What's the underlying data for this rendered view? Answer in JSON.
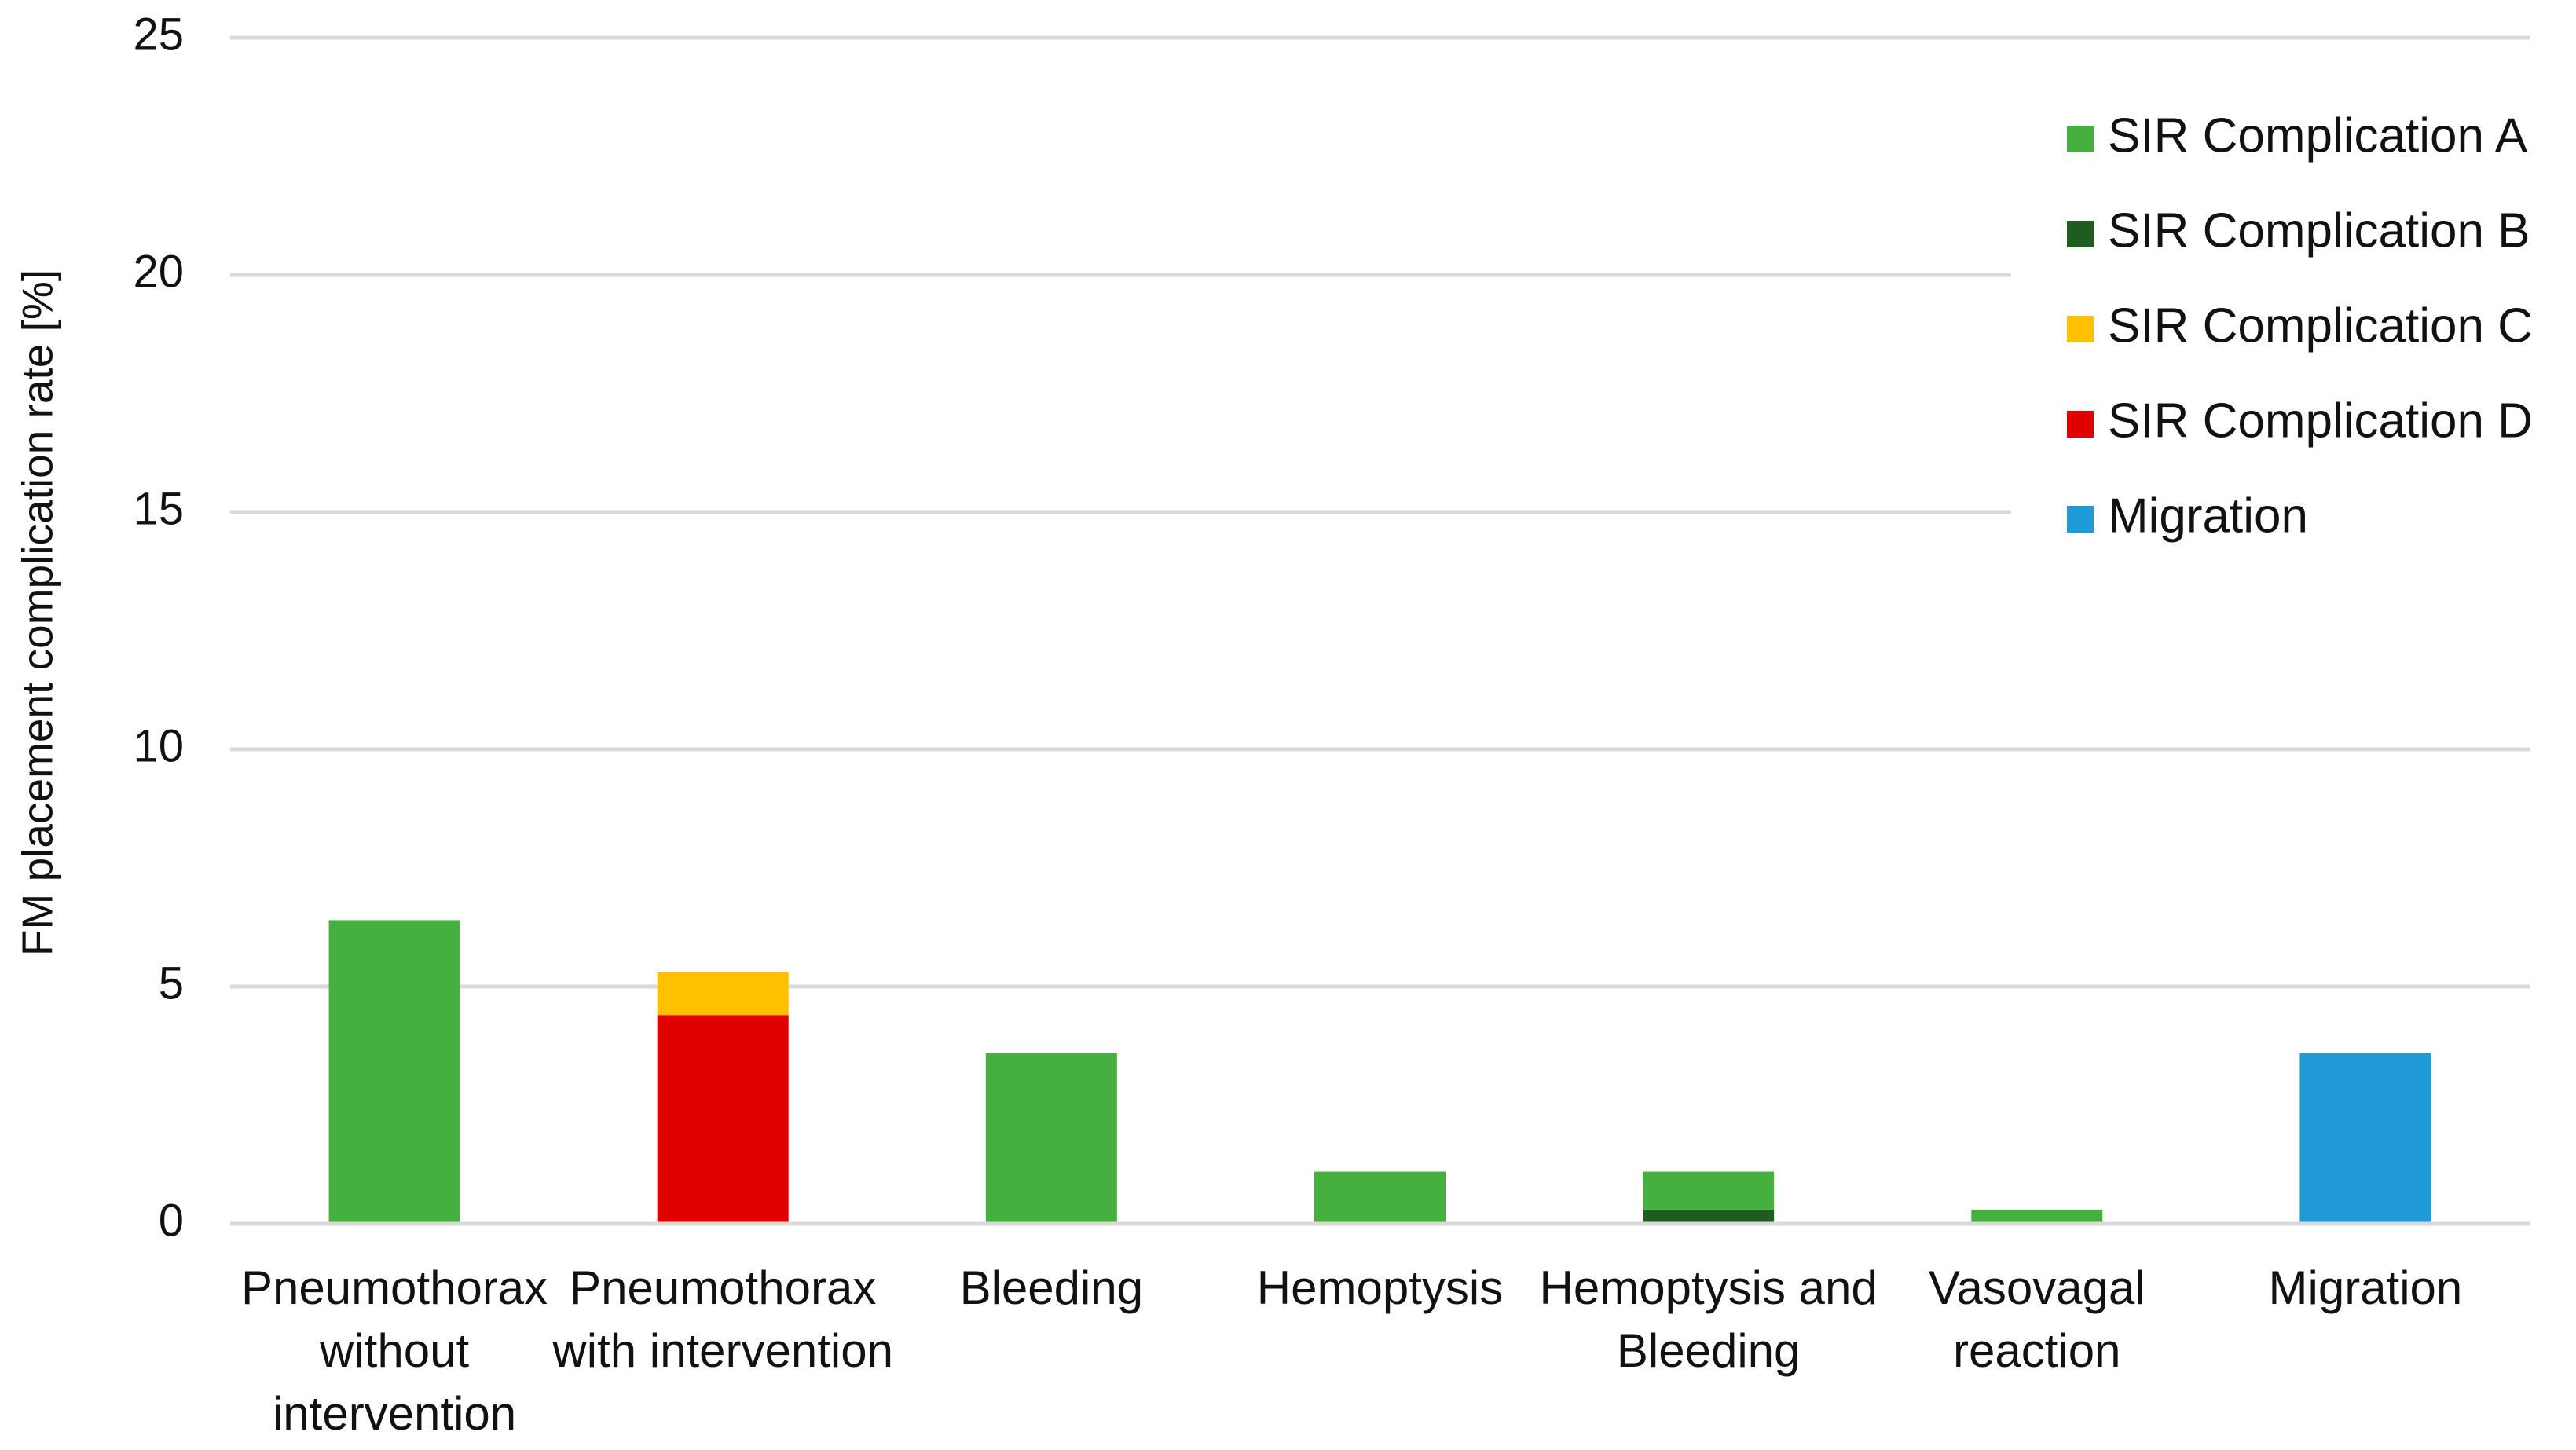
{
  "chart_data": {
    "type": "stacked_bar",
    "ylabel": "FM placement complication rate [%]",
    "categories": [
      "Pneumothorax without intervention",
      "Pneumothorax with intervention",
      "Bleeding",
      "Hemoptysis",
      "Hemoptysis and Bleeding",
      "Vasovagal reaction",
      "Migration"
    ],
    "series": [
      {
        "name": "SIR Complication A",
        "color": "#45b03f",
        "values": [
          6.4,
          null,
          3.6,
          1.1,
          0.8,
          0.3,
          null
        ]
      },
      {
        "name": "SIR Complication B",
        "color": "#1e5c20",
        "values": [
          null,
          null,
          null,
          null,
          0.3,
          null,
          null
        ]
      },
      {
        "name": "SIR Complication C",
        "color": "#ffc000",
        "values": [
          null,
          0.9,
          null,
          null,
          null,
          null,
          null
        ]
      },
      {
        "name": "SIR Complication D",
        "color": "#e00000",
        "values": [
          null,
          4.4,
          null,
          null,
          null,
          null,
          null
        ]
      },
      {
        "name": "Migration",
        "color": "#1f9ad6",
        "values": [
          null,
          null,
          null,
          null,
          null,
          null,
          3.6
        ]
      }
    ],
    "ylim": [
      0,
      25
    ],
    "yticks": [
      0,
      5,
      10,
      15,
      20,
      25
    ],
    "grid": true,
    "legend": "right"
  }
}
